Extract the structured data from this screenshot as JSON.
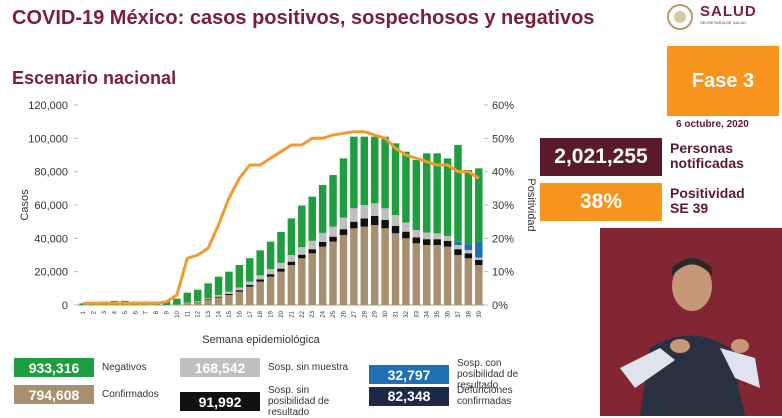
{
  "header": {
    "title": "COVID-19 México: casos positivos, sospechosos y negativos",
    "subtitle": "Escenario nacional",
    "logo": "SALUD",
    "logo_subtitle": "SECRETARÍA DE SALUD"
  },
  "panel": {
    "phase": "Fase 3",
    "date": "6 octubre, 2020",
    "notified_value": "2,021,255",
    "notified_label": "Personas notificadas",
    "positivity_value": "38%",
    "positivity_label": "Positividad SE 39"
  },
  "chart_data": {
    "type": "bar",
    "stacked": true,
    "x_label": "Semana epidemiológica",
    "y_label": "Casos",
    "y2_label": "Positividad",
    "categories": [
      "1",
      "2",
      "3",
      "4",
      "5",
      "6",
      "7",
      "8",
      "9",
      "10",
      "11",
      "12",
      "13",
      "14",
      "15",
      "16",
      "17",
      "18",
      "19",
      "20",
      "21",
      "22",
      "23",
      "24",
      "25",
      "26",
      "27",
      "28",
      "29",
      "30",
      "31",
      "32",
      "33",
      "34",
      "35",
      "36",
      "37",
      "38",
      "39"
    ],
    "ylim": [
      0,
      120000
    ],
    "yticks": [
      {
        "value": 0,
        "label": "0"
      },
      {
        "value": 20000,
        "label": "20,000"
      },
      {
        "value": 40000,
        "label": "40,000"
      },
      {
        "value": 60000,
        "label": "60,000"
      },
      {
        "value": 80000,
        "label": "80,000"
      },
      {
        "value": 100000,
        "label": "100,000"
      },
      {
        "value": 120000,
        "label": "120,000"
      }
    ],
    "y2lim": [
      0,
      60
    ],
    "y2ticks": [
      {
        "value": 0,
        "label": "0%"
      },
      {
        "value": 10,
        "label": "10%"
      },
      {
        "value": 20,
        "label": "20%"
      },
      {
        "value": 30,
        "label": "30%"
      },
      {
        "value": 40,
        "label": "40%"
      },
      {
        "value": 50,
        "label": "50%"
      },
      {
        "value": 60,
        "label": "60%"
      }
    ],
    "series": [
      {
        "name": "Confirmados",
        "total": "794,608",
        "color": "#a69070",
        "values": [
          0,
          0,
          0,
          0,
          0,
          0,
          0,
          0,
          0,
          200,
          1000,
          1500,
          3000,
          4500,
          6000,
          8000,
          11000,
          14000,
          17000,
          20000,
          24000,
          28000,
          31000,
          35000,
          38000,
          42000,
          46000,
          47000,
          48000,
          46000,
          43000,
          40000,
          37000,
          36000,
          36000,
          35000,
          30000,
          28000,
          24000
        ]
      },
      {
        "name": "Sosp. sin posibilidad de resultado",
        "total": "91,992",
        "color": "#111111",
        "values": [
          0,
          0,
          0,
          0,
          0,
          0,
          0,
          0,
          0,
          0,
          100,
          200,
          300,
          500,
          700,
          900,
          1100,
          1300,
          1500,
          1800,
          2000,
          2200,
          2500,
          2800,
          3000,
          3500,
          4000,
          5000,
          5500,
          5000,
          4500,
          4000,
          3500,
          3500,
          3500,
          3500,
          3500,
          3000,
          3000
        ]
      },
      {
        "name": "Sosp. sin muestra",
        "total": "168,542",
        "color": "#bfbfbf",
        "values": [
          0,
          0,
          0,
          0,
          0,
          0,
          0,
          0,
          0,
          100,
          300,
          500,
          700,
          1000,
          1300,
          1600,
          2000,
          2500,
          3000,
          3500,
          4000,
          4500,
          5000,
          5500,
          6000,
          7000,
          8000,
          8000,
          7500,
          7000,
          6500,
          5500,
          4500,
          4000,
          3500,
          3000,
          2500,
          2000,
          1500
        ]
      },
      {
        "name": "Sosp. con posibilidad de resultado",
        "total": "32,797",
        "color": "#1f6fb5",
        "values": [
          0,
          0,
          0,
          0,
          0,
          0,
          0,
          0,
          0,
          0,
          0,
          0,
          0,
          0,
          0,
          0,
          0,
          0,
          0,
          0,
          0,
          0,
          0,
          0,
          0,
          0,
          0,
          0,
          0,
          0,
          0,
          0,
          0,
          0,
          0,
          500,
          2000,
          3500,
          9000
        ]
      },
      {
        "name": "Negativos",
        "total": "933,316",
        "color": "#1e9e3e",
        "values": [
          1000,
          1500,
          2000,
          2500,
          2500,
          2000,
          2000,
          2000,
          2500,
          3500,
          6000,
          7000,
          9000,
          11000,
          12000,
          13500,
          14000,
          15000,
          16500,
          18500,
          22000,
          25000,
          26500,
          28700,
          31000,
          35500,
          43000,
          41000,
          40000,
          43000,
          43000,
          42500,
          42000,
          47500,
          48000,
          46000,
          58000,
          44500,
          44500
        ]
      }
    ],
    "line": {
      "axis": "y2",
      "color": "#f29a2e",
      "values": [
        0.5,
        0.5,
        0.5,
        0.5,
        0.5,
        0.5,
        0.5,
        0.5,
        1,
        3,
        14,
        15,
        17,
        24,
        32,
        38,
        42,
        42,
        44,
        46,
        48,
        48,
        50,
        50,
        51,
        51.5,
        52,
        52,
        51,
        50,
        47,
        45,
        44,
        43,
        42,
        42,
        40,
        40,
        38
      ]
    },
    "extra_legend": {
      "name": "Defunciones confirmadas",
      "total": "82,348",
      "color": "#1c2a48"
    }
  }
}
